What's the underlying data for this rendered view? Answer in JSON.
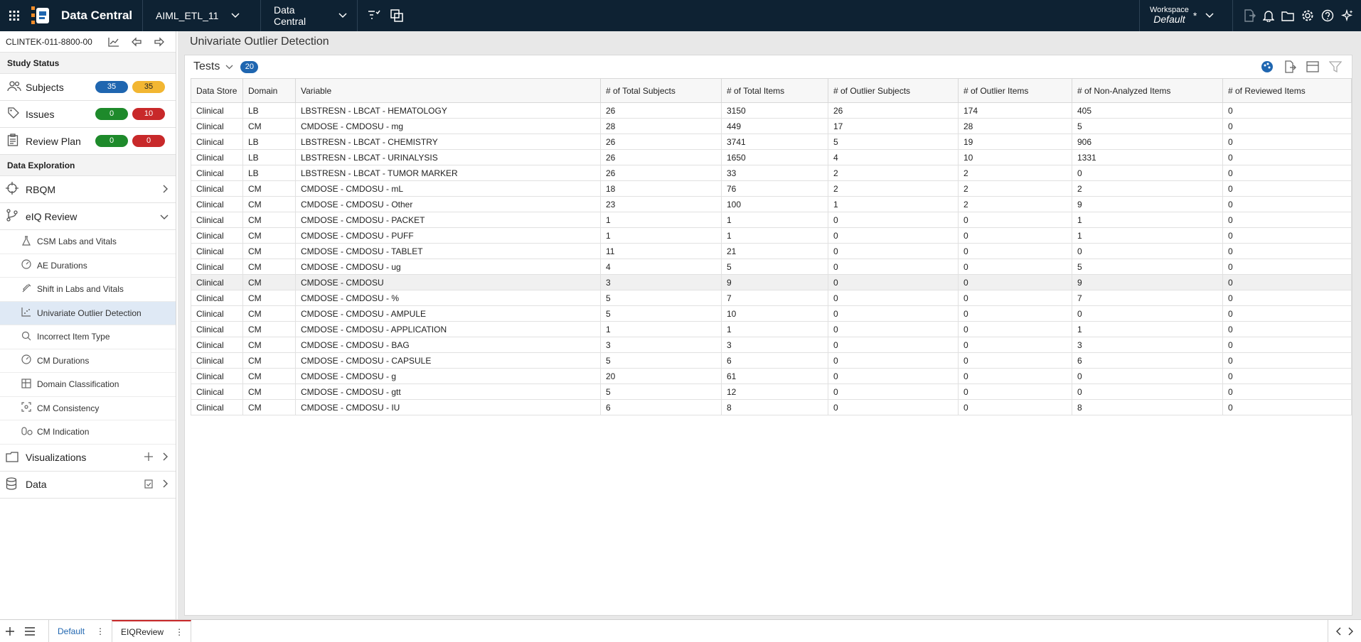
{
  "topbar": {
    "app_name": "Data Central",
    "project_dropdown": "AIML_ETL_11",
    "context_dropdown": "Data Central",
    "workspace_caption": "Workspace",
    "workspace_value": "Default",
    "workspace_marker": "*"
  },
  "sidebar": {
    "study_id": "CLINTEK-011-8800-00",
    "study_status_heading": "Study Status",
    "status": [
      {
        "label": "Subjects",
        "badge1": "35",
        "badge2": "35"
      },
      {
        "label": "Issues",
        "badge1": "0",
        "badge2": "10"
      },
      {
        "label": "Review Plan",
        "badge1": "0",
        "badge2": "0"
      }
    ],
    "exploration_heading": "Data Exploration",
    "rbqm": "RBQM",
    "eiq_review": "eIQ Review",
    "sub_items": [
      "CSM Labs and Vitals",
      "AE Durations",
      "Shift in Labs and Vitals",
      "Univariate Outlier Detection",
      "Incorrect Item Type",
      "CM Durations",
      "Domain Classification",
      "CM Consistency",
      "CM Indication"
    ],
    "visualizations": "Visualizations",
    "data": "Data"
  },
  "main": {
    "page_title": "Univariate Outlier Detection",
    "panel_title": "Tests",
    "count": "20",
    "columns": [
      "Data Store",
      "Domain",
      "Variable",
      "# of Total Subjects",
      "# of Total Items",
      "# of Outlier Subjects",
      "# of Outlier Items",
      "# of Non-Analyzed Items",
      "# of Reviewed Items"
    ],
    "rows": [
      [
        "Clinical",
        "LB",
        "LBSTRESN - LBCAT - HEMATOLOGY",
        "26",
        "3150",
        "26",
        "174",
        "405",
        "0"
      ],
      [
        "Clinical",
        "CM",
        "CMDOSE - CMDOSU - mg",
        "28",
        "449",
        "17",
        "28",
        "5",
        "0"
      ],
      [
        "Clinical",
        "LB",
        "LBSTRESN - LBCAT - CHEMISTRY",
        "26",
        "3741",
        "5",
        "19",
        "906",
        "0"
      ],
      [
        "Clinical",
        "LB",
        "LBSTRESN - LBCAT - URINALYSIS",
        "26",
        "1650",
        "4",
        "10",
        "1331",
        "0"
      ],
      [
        "Clinical",
        "LB",
        "LBSTRESN - LBCAT - TUMOR MARKER",
        "26",
        "33",
        "2",
        "2",
        "0",
        "0"
      ],
      [
        "Clinical",
        "CM",
        "CMDOSE - CMDOSU - mL",
        "18",
        "76",
        "2",
        "2",
        "2",
        "0"
      ],
      [
        "Clinical",
        "CM",
        "CMDOSE - CMDOSU - Other",
        "23",
        "100",
        "1",
        "2",
        "9",
        "0"
      ],
      [
        "Clinical",
        "CM",
        "CMDOSE - CMDOSU - PACKET",
        "1",
        "1",
        "0",
        "0",
        "1",
        "0"
      ],
      [
        "Clinical",
        "CM",
        "CMDOSE - CMDOSU - PUFF",
        "1",
        "1",
        "0",
        "0",
        "1",
        "0"
      ],
      [
        "Clinical",
        "CM",
        "CMDOSE - CMDOSU - TABLET",
        "11",
        "21",
        "0",
        "0",
        "0",
        "0"
      ],
      [
        "Clinical",
        "CM",
        "CMDOSE - CMDOSU - ug",
        "4",
        "5",
        "0",
        "0",
        "5",
        "0"
      ],
      [
        "Clinical",
        "CM",
        "CMDOSE - CMDOSU",
        "3",
        "9",
        "0",
        "0",
        "9",
        "0"
      ],
      [
        "Clinical",
        "CM",
        "CMDOSE - CMDOSU - %",
        "5",
        "7",
        "0",
        "0",
        "7",
        "0"
      ],
      [
        "Clinical",
        "CM",
        "CMDOSE - CMDOSU - AMPULE",
        "5",
        "10",
        "0",
        "0",
        "0",
        "0"
      ],
      [
        "Clinical",
        "CM",
        "CMDOSE - CMDOSU - APPLICATION",
        "1",
        "1",
        "0",
        "0",
        "1",
        "0"
      ],
      [
        "Clinical",
        "CM",
        "CMDOSE - CMDOSU - BAG",
        "3",
        "3",
        "0",
        "0",
        "3",
        "0"
      ],
      [
        "Clinical",
        "CM",
        "CMDOSE - CMDOSU - CAPSULE",
        "5",
        "6",
        "0",
        "0",
        "6",
        "0"
      ],
      [
        "Clinical",
        "CM",
        "CMDOSE - CMDOSU - g",
        "20",
        "61",
        "0",
        "0",
        "0",
        "0"
      ],
      [
        "Clinical",
        "CM",
        "CMDOSE - CMDOSU - gtt",
        "5",
        "12",
        "0",
        "0",
        "0",
        "0"
      ],
      [
        "Clinical",
        "CM",
        "CMDOSE - CMDOSU - IU",
        "6",
        "8",
        "0",
        "0",
        "8",
        "0"
      ]
    ]
  },
  "bottombar": {
    "tabs": [
      "Default",
      "EIQReview"
    ]
  }
}
